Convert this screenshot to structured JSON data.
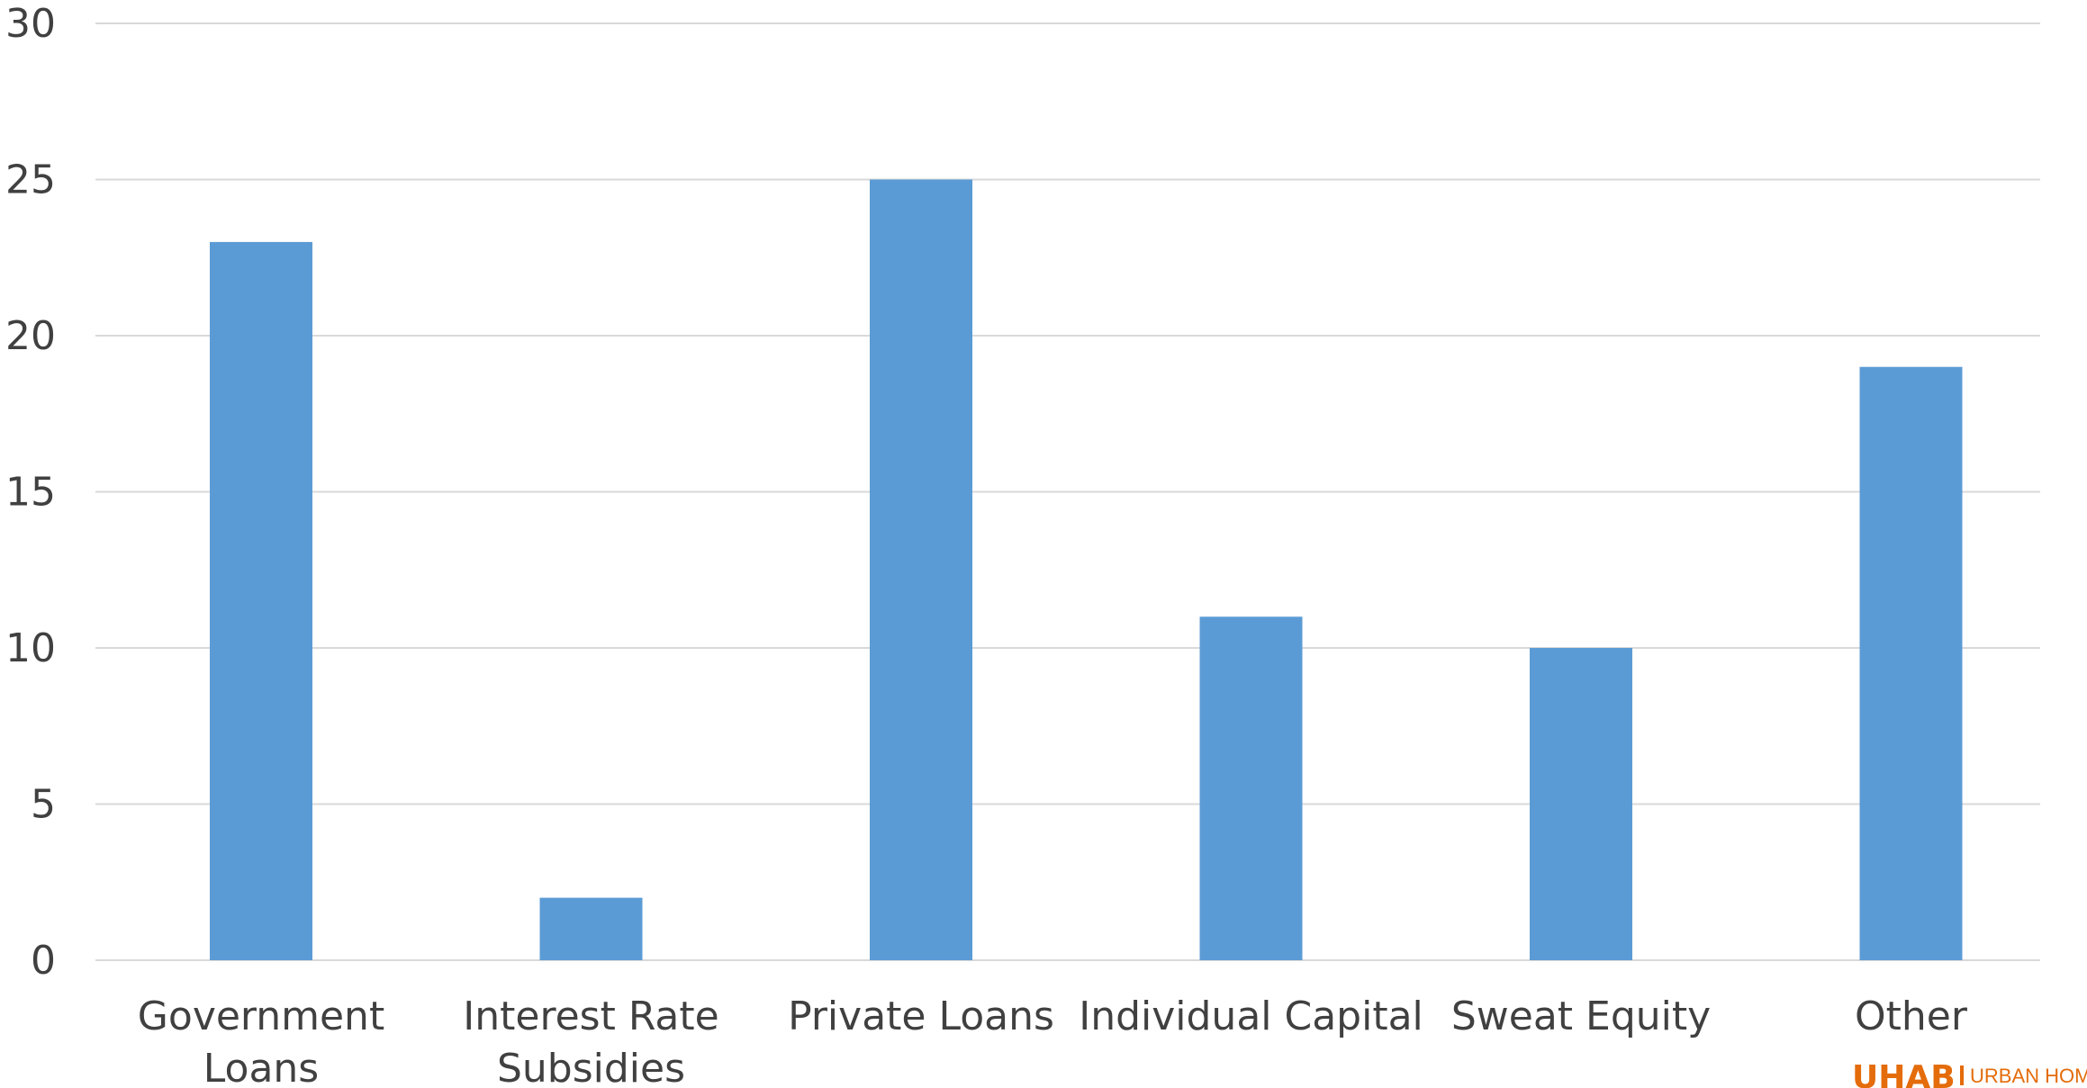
{
  "chart_data": {
    "type": "bar",
    "title": "",
    "xlabel": "",
    "ylabel": "",
    "categories": [
      [
        "Government",
        "Loans"
      ],
      [
        "Interest Rate",
        "Subsidies"
      ],
      [
        "Private Loans"
      ],
      [
        "Individual Capital"
      ],
      [
        "Sweat Equity"
      ],
      [
        "Other"
      ]
    ],
    "values": [
      23,
      2,
      25,
      11,
      10,
      19
    ],
    "ylim": [
      0,
      30
    ],
    "yticks": [
      0,
      5,
      10,
      15,
      20,
      25,
      30
    ],
    "grid": true,
    "legend": "none",
    "bar_color": "#5b9bd5",
    "grid_color": "#d9d9d9",
    "text_color": "#404040"
  },
  "logo": {
    "main": "UHAB",
    "sub": "URBAN HOMES",
    "color": "#e46c0a"
  }
}
